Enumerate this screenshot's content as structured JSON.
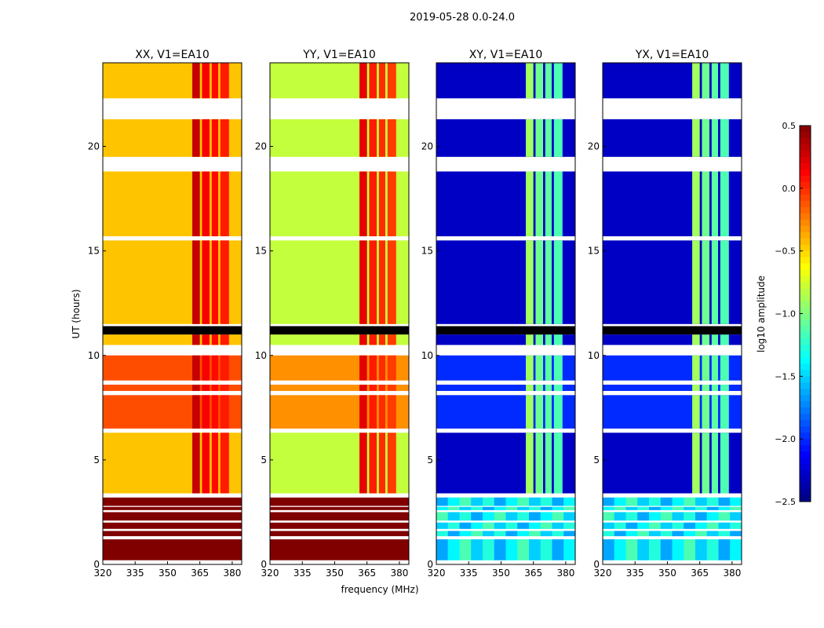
{
  "chart_data": {
    "type": "heatmap",
    "title": "2019-05-28 0.0-24.0",
    "xlabel": "frequency (MHz)",
    "ylabel": "UT (hours)",
    "xlim": [
      320,
      384.4
    ],
    "ylim": [
      0,
      24
    ],
    "xticks": [
      "320",
      "335",
      "350",
      "365",
      "380"
    ],
    "yticks": [
      "0",
      "5",
      "10",
      "15",
      "20"
    ],
    "panels": [
      {
        "title": "XX, V1=EA10",
        "levels": {
          "low": 0.5,
          "normal": -0.45,
          "bright": -0.1,
          "band": 0.2
        }
      },
      {
        "title": "YY, V1=EA10",
        "levels": {
          "low": 0.5,
          "normal": -0.8,
          "bright": -0.3,
          "band": 0.1
        }
      },
      {
        "title": "XY, V1=EA10",
        "levels": {
          "low": -1.4,
          "normal": -2.3,
          "bright": -2.0,
          "band": -1.0
        }
      },
      {
        "title": "YX, V1=EA10",
        "levels": {
          "low": -1.4,
          "normal": -2.3,
          "bright": -2.0,
          "band": -1.0
        }
      }
    ],
    "time_segments_hours": [
      [
        0.2,
        1.2,
        "low"
      ],
      [
        1.35,
        1.6,
        "low"
      ],
      [
        1.7,
        2.0,
        "low"
      ],
      [
        2.1,
        2.5,
        "low"
      ],
      [
        2.6,
        2.75,
        "low"
      ],
      [
        2.8,
        3.2,
        "low"
      ],
      [
        3.4,
        6.3,
        "normal"
      ],
      [
        6.5,
        8.1,
        "bright"
      ],
      [
        8.3,
        8.6,
        "bright"
      ],
      [
        8.8,
        10.0,
        "bright"
      ],
      [
        10.5,
        11.0,
        "normal"
      ],
      [
        11.5,
        15.5,
        "normal"
      ],
      [
        15.7,
        18.8,
        "normal"
      ],
      [
        19.5,
        21.3,
        "normal"
      ],
      [
        22.3,
        24.0,
        "normal"
      ]
    ],
    "band_columns_mhz": [
      [
        361.5,
        365
      ],
      [
        366,
        369.5
      ],
      [
        370.5,
        373.5
      ],
      [
        374.5,
        378.5
      ]
    ],
    "colorbar": {
      "label": "log10 amplitude",
      "range": [
        -2.5,
        0.5
      ],
      "ticks": [
        "0.5",
        "0.0",
        "−0.5",
        "−1.0",
        "−1.5",
        "−2.0",
        "−2.5"
      ],
      "colormap": "jet"
    }
  }
}
